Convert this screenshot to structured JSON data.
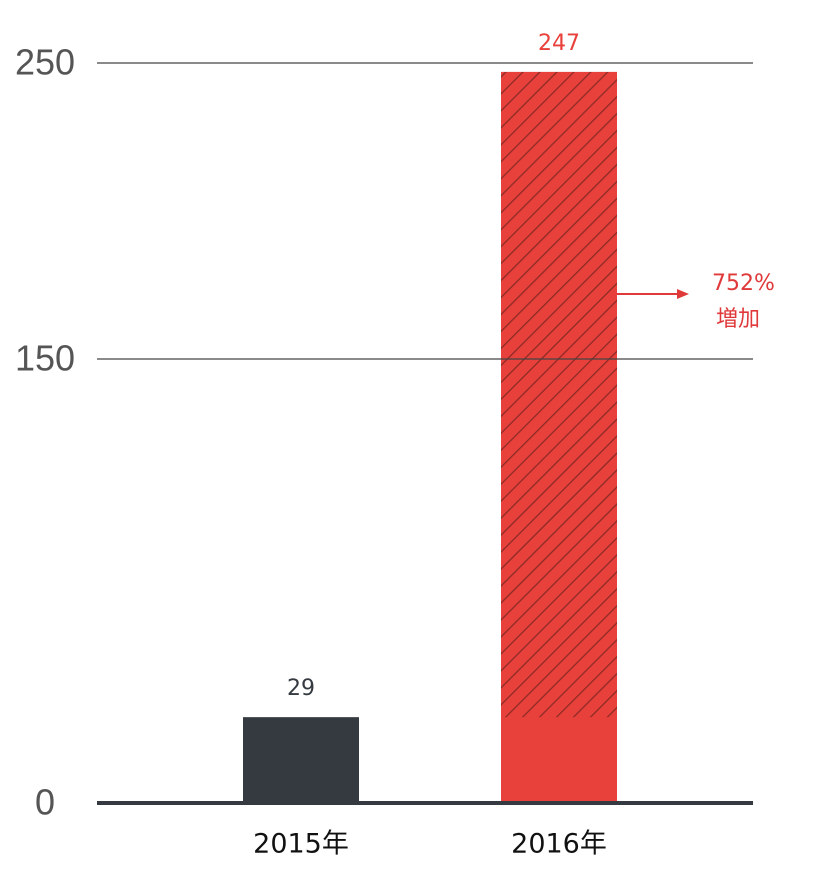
{
  "chart_data": {
    "type": "bar",
    "categories": [
      "2015年",
      "2016年"
    ],
    "values": [
      29,
      247
    ],
    "colors": [
      "#343a40",
      "#e8403a"
    ],
    "hatch": [
      false,
      true
    ],
    "ylim": [
      0,
      250
    ],
    "yticks": [
      0,
      150,
      250
    ],
    "grid": true,
    "annotation": {
      "lines": [
        "752%",
        "増加"
      ],
      "color": "#e0393a"
    }
  }
}
